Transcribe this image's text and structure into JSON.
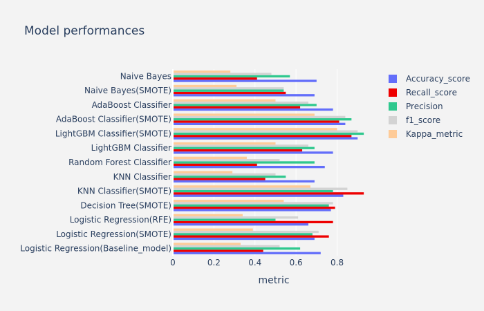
{
  "chart_data": {
    "type": "bar",
    "orientation": "horizontal",
    "title": "Model performances",
    "xlabel": "metric",
    "ylabel": "",
    "xlim": [
      0,
      0.98
    ],
    "xticks": [
      0,
      0.2,
      0.4,
      0.6,
      0.8
    ],
    "xtick_labels": [
      "0",
      "0.2",
      "0.4",
      "0.6",
      "0.8"
    ],
    "grid": true,
    "legend_position": "right",
    "categories": [
      "Logistic Regression(Baseline_model)",
      "Logistic Regression(SMOTE)",
      "Logistic Regression(RFE)",
      "Decision Tree(SMOTE)",
      "KNN Classifier(SMOTE)",
      "KNN Classifier",
      "Random Forest Classifier",
      "LightGBM Classifier",
      "LightGBM Classifier(SMOTE)",
      "AdaBoost Classifier(SMOTE)",
      "AdaBoost Classifier",
      "Naive Bayes(SMOTE)",
      "Naive Bayes"
    ],
    "series": [
      {
        "name": "Accuracy_score",
        "color": "#636efa",
        "values": [
          0.72,
          0.69,
          0.66,
          0.77,
          0.83,
          0.69,
          0.74,
          0.78,
          0.9,
          0.84,
          0.78,
          0.69,
          0.7
        ]
      },
      {
        "name": "Recall_score",
        "color": "#ee0000",
        "values": [
          0.44,
          0.76,
          0.78,
          0.79,
          0.93,
          0.45,
          0.41,
          0.63,
          0.87,
          0.81,
          0.62,
          0.55,
          0.41
        ]
      },
      {
        "name": "Precision",
        "color": "#2fc88e",
        "values": [
          0.62,
          0.68,
          0.5,
          0.76,
          0.78,
          0.55,
          0.69,
          0.69,
          0.93,
          0.87,
          0.7,
          0.54,
          0.57
        ]
      },
      {
        "name": "f1_score",
        "color": "#d3d3d3",
        "values": [
          0.52,
          0.71,
          0.61,
          0.78,
          0.85,
          0.5,
          0.52,
          0.66,
          0.9,
          0.84,
          0.66,
          0.54,
          0.48
        ]
      },
      {
        "name": "Kappa_metric",
        "color": "#fecb98",
        "values": [
          0.33,
          0.39,
          0.34,
          0.54,
          0.67,
          0.29,
          0.36,
          0.5,
          0.8,
          0.69,
          0.5,
          0.31,
          0.28
        ]
      }
    ]
  }
}
